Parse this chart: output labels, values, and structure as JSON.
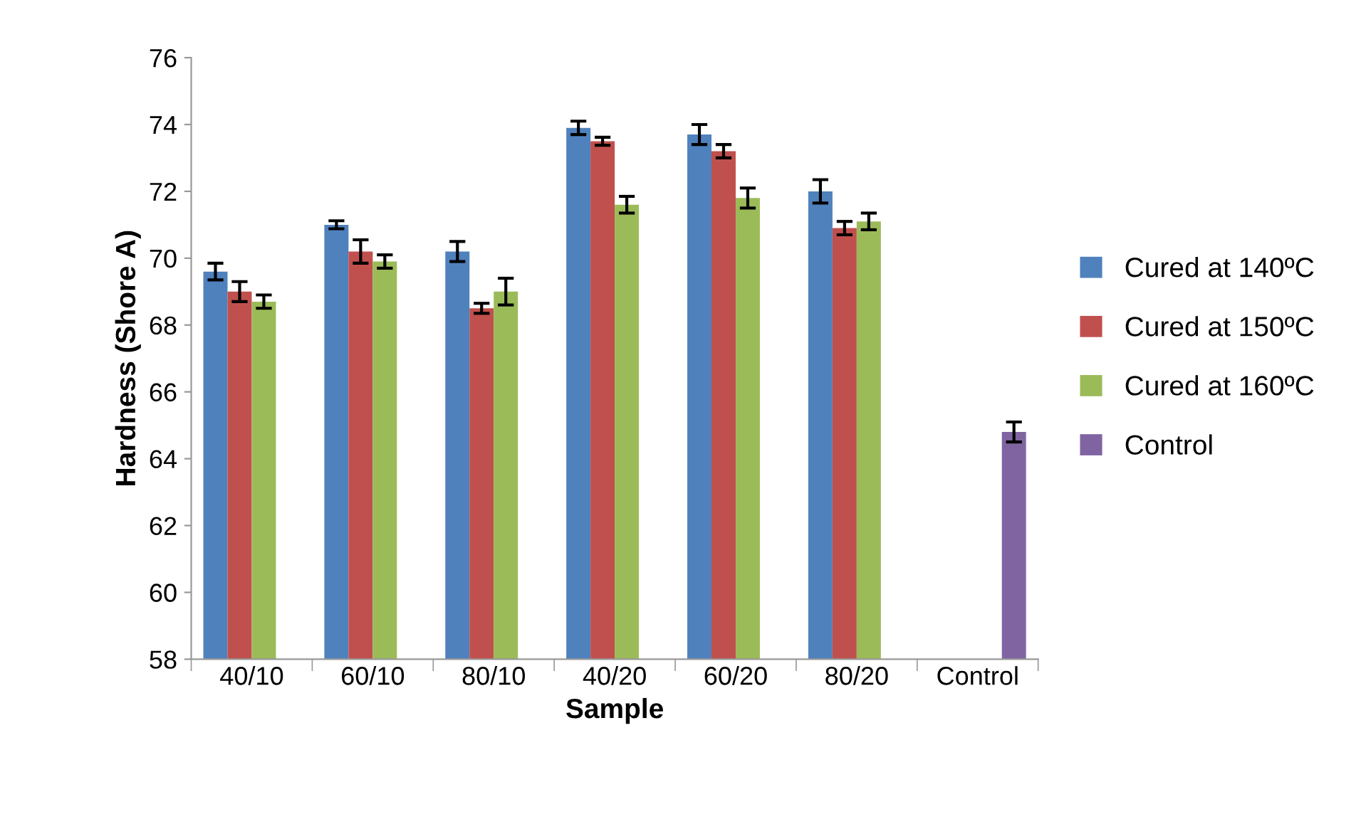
{
  "chart_data": {
    "type": "bar",
    "xlabel": "Sample",
    "ylabel": "Hardness (Shore A)",
    "categories": [
      "40/10",
      "60/10",
      "80/10",
      "40/20",
      "60/20",
      "80/20",
      "Control"
    ],
    "series": [
      {
        "name": "Cured at 140ºC",
        "color": "#4f81bd",
        "values": [
          69.6,
          71.0,
          70.2,
          73.9,
          73.7,
          72.0,
          null
        ],
        "errors": [
          0.25,
          0.12,
          0.3,
          0.2,
          0.3,
          0.35,
          null
        ]
      },
      {
        "name": "Cured at 150ºC",
        "color": "#c0504d",
        "values": [
          69.0,
          70.2,
          68.5,
          73.5,
          73.2,
          70.9,
          null
        ],
        "errors": [
          0.3,
          0.35,
          0.15,
          0.12,
          0.2,
          0.2,
          null
        ]
      },
      {
        "name": "Cured at 160ºC",
        "color": "#9bbb59",
        "values": [
          68.7,
          69.9,
          69.0,
          71.6,
          71.8,
          71.1,
          null
        ],
        "errors": [
          0.2,
          0.2,
          0.4,
          0.25,
          0.3,
          0.25,
          null
        ]
      },
      {
        "name": "Control",
        "color": "#8064a2",
        "values": [
          null,
          null,
          null,
          null,
          null,
          null,
          64.8
        ],
        "errors": [
          null,
          null,
          null,
          null,
          null,
          null,
          0.3
        ]
      }
    ],
    "ylim": [
      58,
      76
    ],
    "yticks": [
      58,
      60,
      62,
      64,
      66,
      68,
      70,
      72,
      74,
      76
    ],
    "grid": false,
    "legend": "right"
  }
}
